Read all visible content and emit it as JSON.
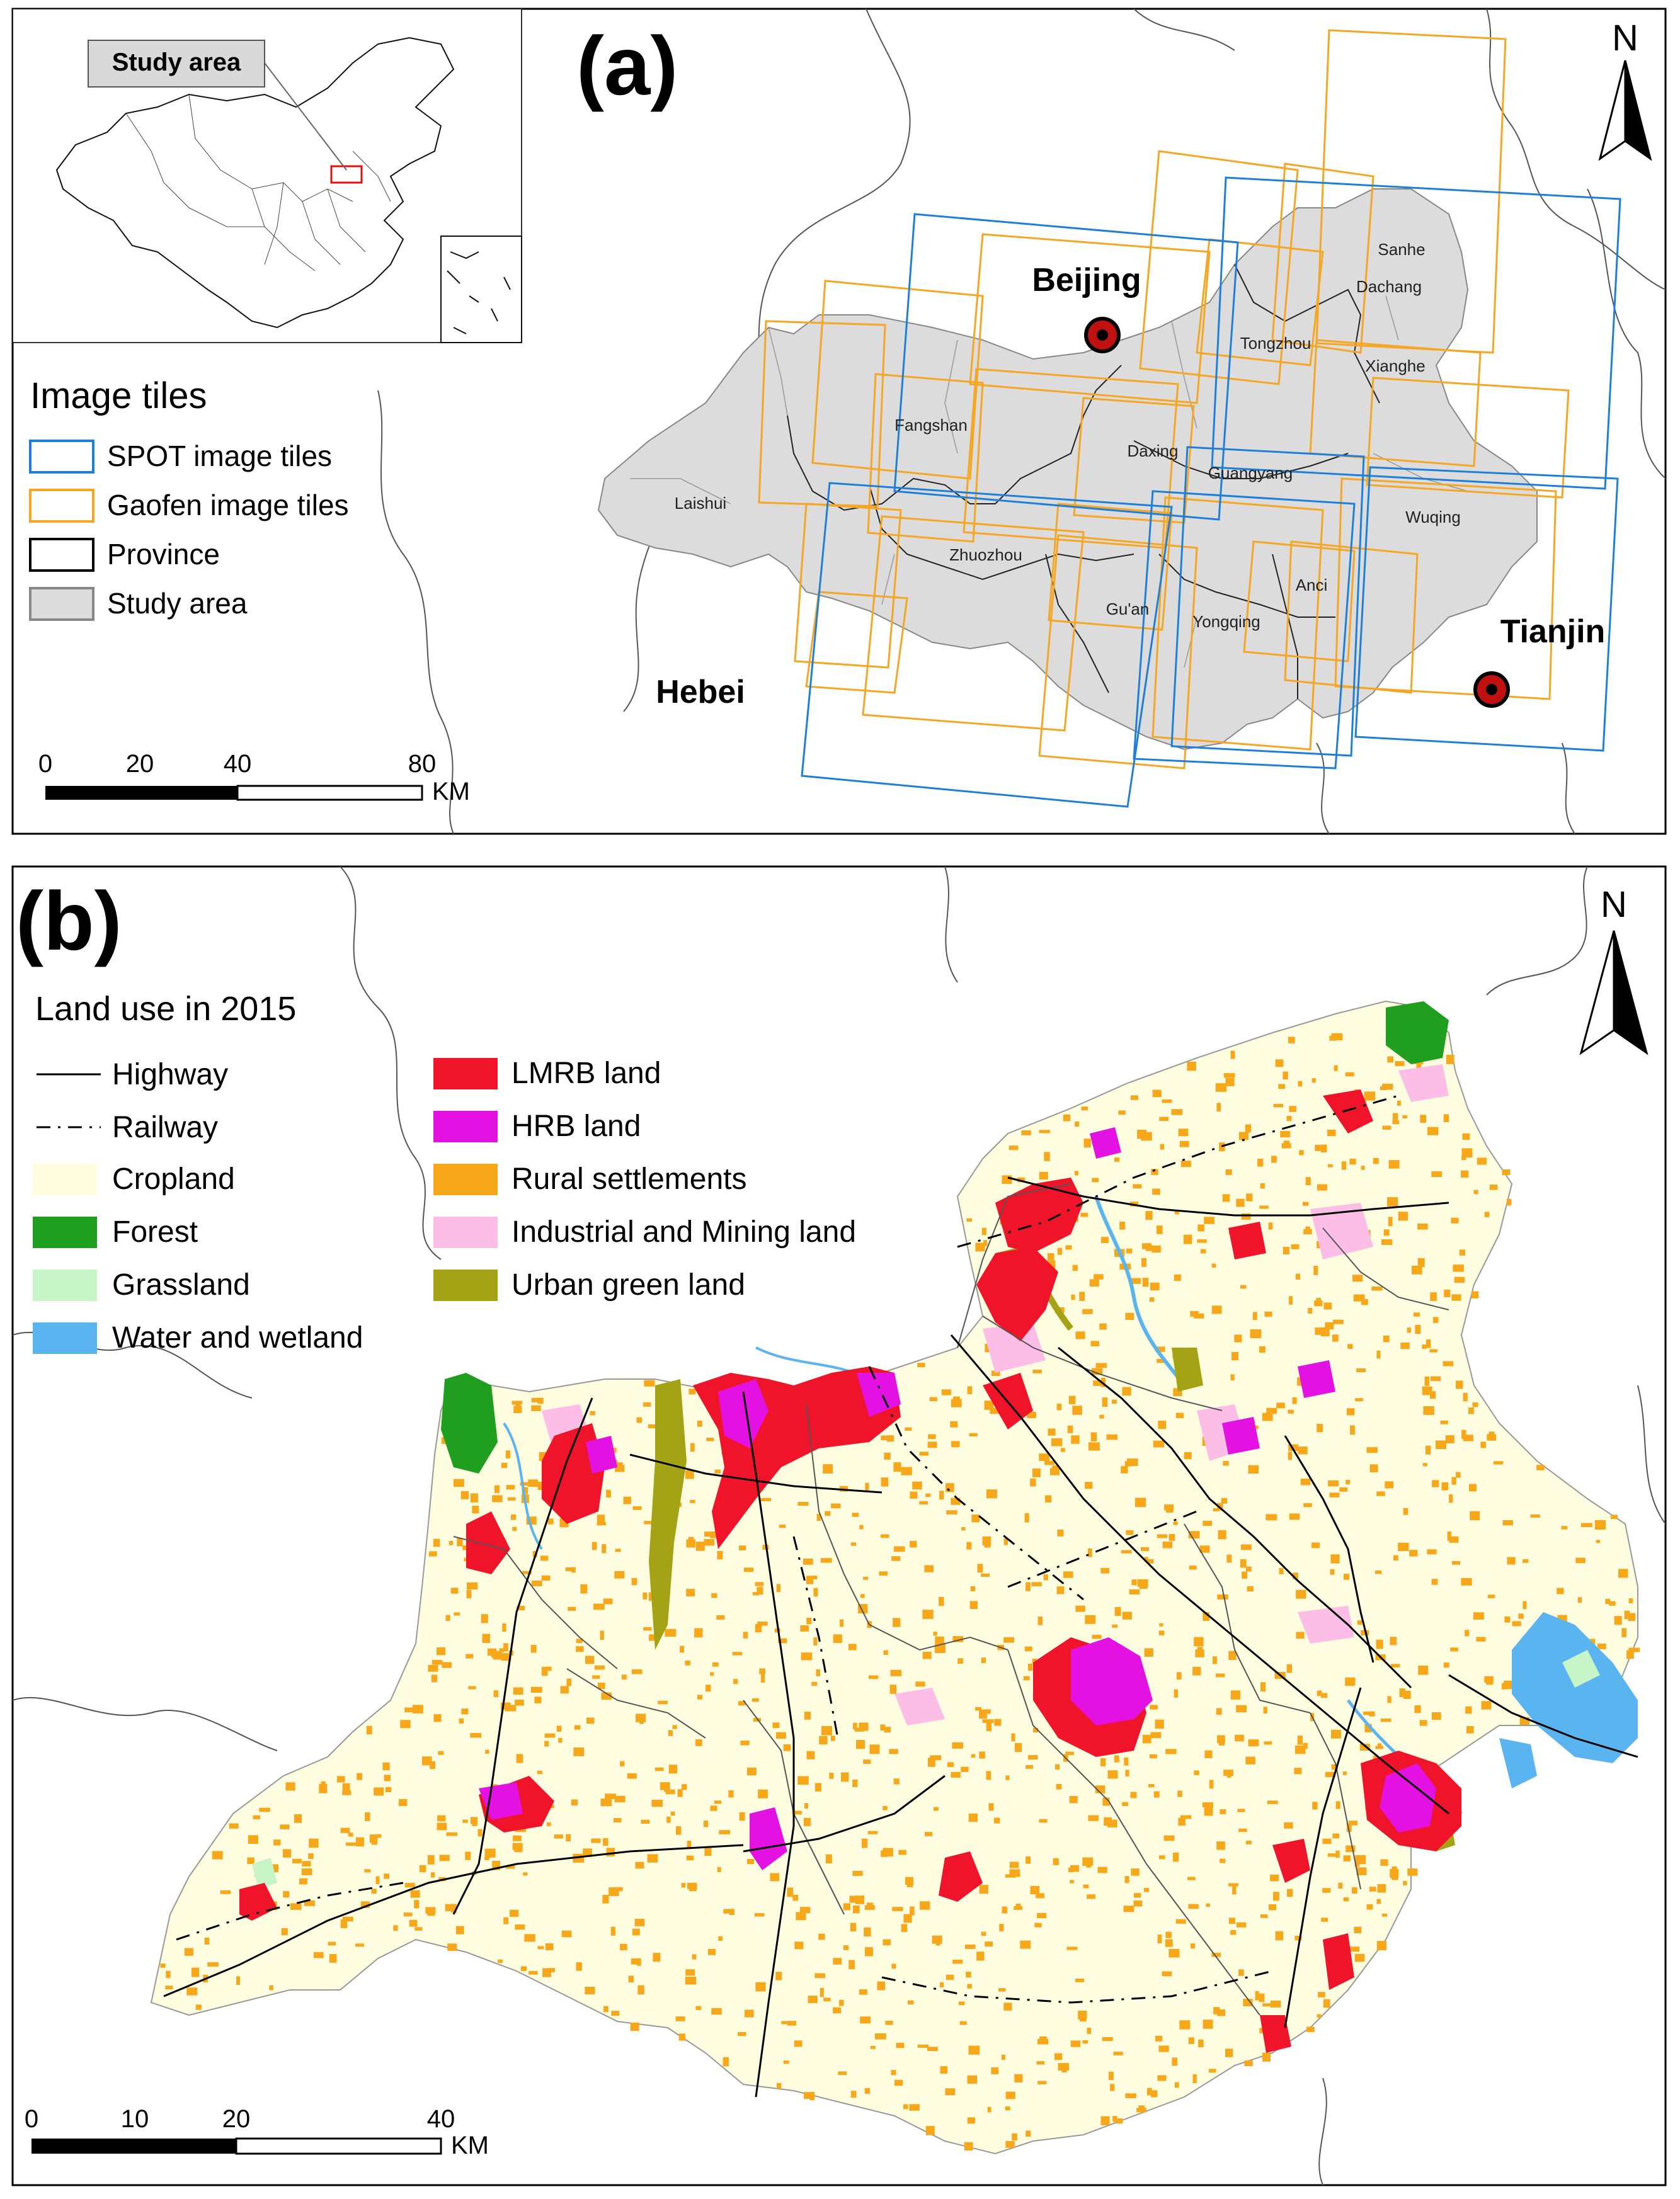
{
  "panel_a": {
    "label": "(a)",
    "inset": {
      "callout": "Study area"
    },
    "legend": {
      "title": "Image tiles",
      "items": [
        {
          "label": "SPOT image tiles",
          "color": "#1e7fd8",
          "kind": "outline"
        },
        {
          "label": "Gaofen image tiles",
          "color": "#f5a623",
          "kind": "outline"
        },
        {
          "label": "Province",
          "color": "#000000",
          "kind": "outline"
        },
        {
          "label": "Study area",
          "color": "#dcdcdc",
          "kind": "fill"
        }
      ]
    },
    "scale": {
      "ticks": [
        "0",
        "20",
        "40",
        "80"
      ],
      "unit": "KM"
    },
    "north": "N",
    "cities": [
      {
        "name": "Beijing"
      },
      {
        "name": "Tianjin"
      }
    ],
    "province_label": "Hebei",
    "counties": [
      "Sanhe",
      "Dachang",
      "Tongzhou",
      "Xianghe",
      "Fangshan",
      "Daxing",
      "Guangyang",
      "Laishui",
      "Wuqing",
      "Zhuozhou",
      "Anci",
      "Gu'an",
      "Yongqing"
    ]
  },
  "panel_b": {
    "label": "(b)",
    "legend": {
      "title": "Land use in 2015",
      "lines": [
        {
          "label": "Highway",
          "style": "solid"
        },
        {
          "label": "Railway",
          "style": "dashed"
        }
      ],
      "classes_left": [
        {
          "label": "Cropland",
          "color": "#fffde0"
        },
        {
          "label": "Forest",
          "color": "#1f9e1f"
        },
        {
          "label": "Grassland",
          "color": "#c8f5c8"
        },
        {
          "label": "Water and wetland",
          "color": "#5ab4f0"
        }
      ],
      "classes_right": [
        {
          "label": "LMRB land",
          "color": "#f0142a"
        },
        {
          "label": "HRB land",
          "color": "#e312e3"
        },
        {
          "label": "Rural settlements",
          "color": "#f7a81a"
        },
        {
          "label": "Industrial and Mining land",
          "color": "#fcbde6"
        },
        {
          "label": "Urban green land",
          "color": "#a3a315"
        }
      ]
    },
    "scale": {
      "ticks": [
        "0",
        "10",
        "20",
        "40"
      ],
      "unit": "KM"
    },
    "north": "N"
  }
}
